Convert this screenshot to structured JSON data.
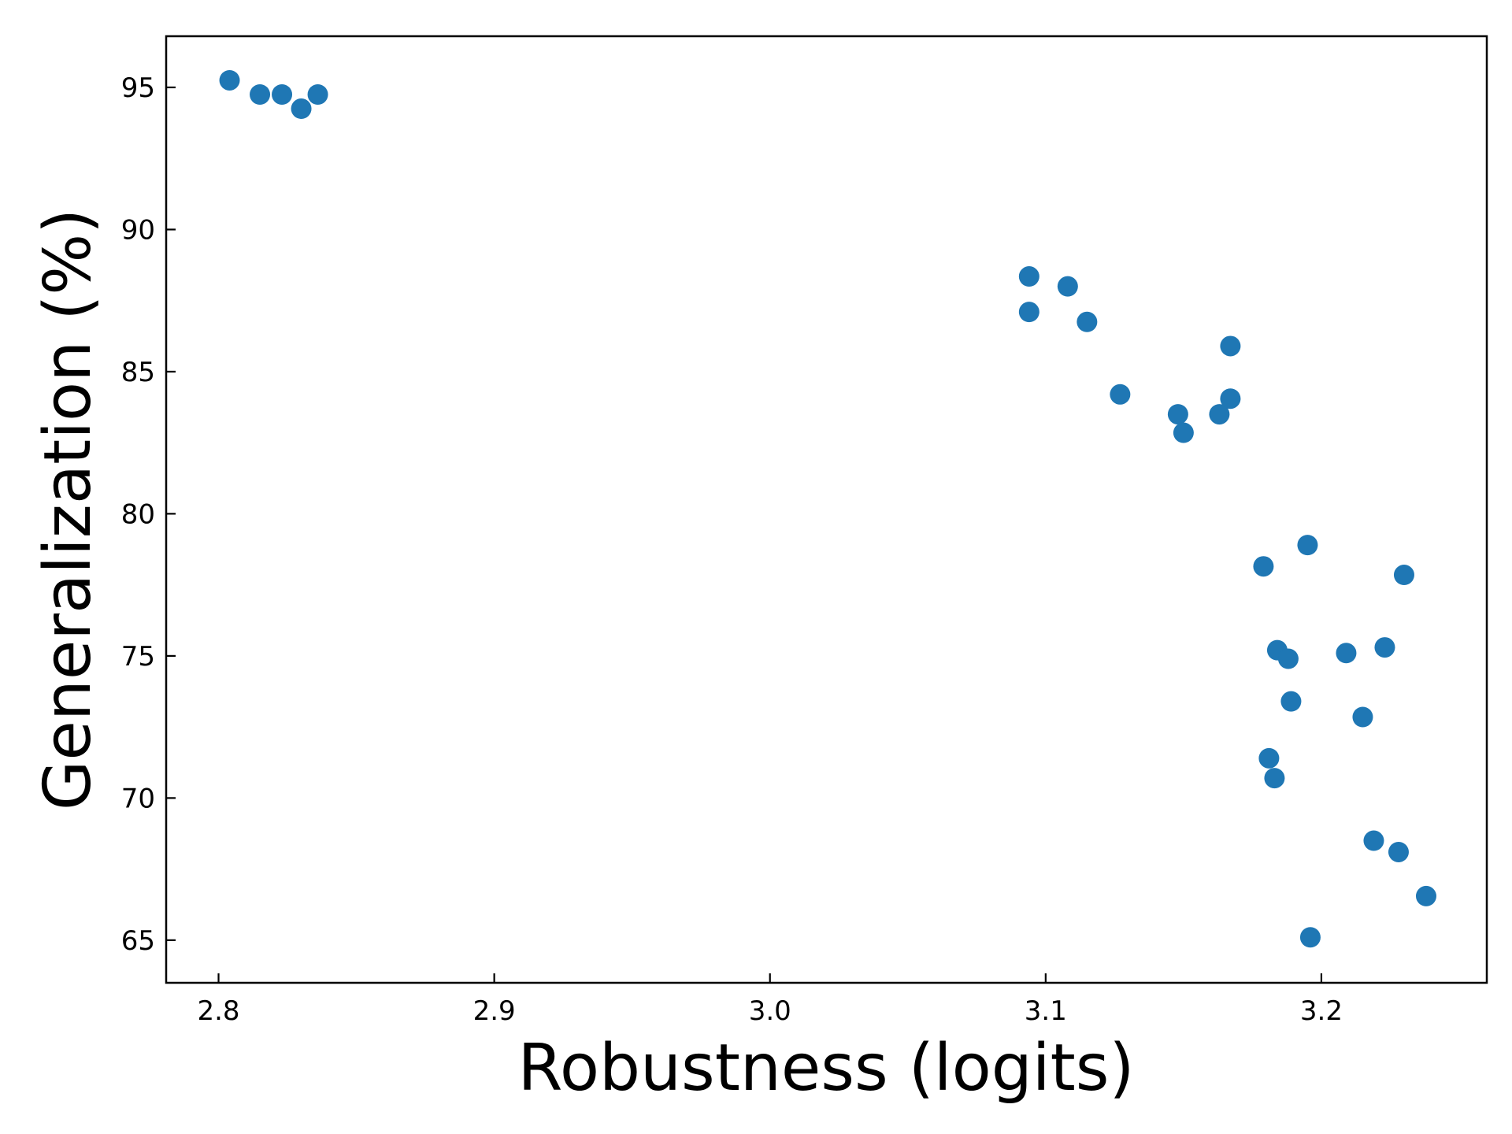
{
  "chart_data": {
    "type": "scatter",
    "xlabel": "Robustness (logits)",
    "ylabel": "Generalization (%)",
    "xlim": [
      2.781,
      3.26
    ],
    "ylim": [
      63.5,
      96.8
    ],
    "xticks": [
      2.8,
      2.9,
      3.0,
      3.1,
      3.2
    ],
    "xtick_labels": [
      "2.8",
      "2.9",
      "3.0",
      "3.1",
      "3.2"
    ],
    "yticks": [
      65,
      70,
      75,
      80,
      85,
      90,
      95
    ],
    "ytick_labels": [
      "65",
      "70",
      "75",
      "80",
      "85",
      "90",
      "95"
    ],
    "grid": false,
    "legend": "none",
    "marker_color": "#1f77b4",
    "points": [
      {
        "x": 2.804,
        "y": 95.25
      },
      {
        "x": 2.815,
        "y": 94.75
      },
      {
        "x": 2.823,
        "y": 94.75
      },
      {
        "x": 2.83,
        "y": 94.25
      },
      {
        "x": 2.836,
        "y": 94.75
      },
      {
        "x": 3.094,
        "y": 88.35
      },
      {
        "x": 3.094,
        "y": 87.1
      },
      {
        "x": 3.108,
        "y": 88.0
      },
      {
        "x": 3.115,
        "y": 86.75
      },
      {
        "x": 3.127,
        "y": 84.2
      },
      {
        "x": 3.148,
        "y": 83.5
      },
      {
        "x": 3.15,
        "y": 82.85
      },
      {
        "x": 3.163,
        "y": 83.5
      },
      {
        "x": 3.167,
        "y": 85.9
      },
      {
        "x": 3.167,
        "y": 84.05
      },
      {
        "x": 3.179,
        "y": 78.15
      },
      {
        "x": 3.181,
        "y": 71.4
      },
      {
        "x": 3.183,
        "y": 70.7
      },
      {
        "x": 3.184,
        "y": 75.2
      },
      {
        "x": 3.188,
        "y": 74.9
      },
      {
        "x": 3.189,
        "y": 73.4
      },
      {
        "x": 3.195,
        "y": 78.9
      },
      {
        "x": 3.196,
        "y": 65.1
      },
      {
        "x": 3.209,
        "y": 75.1
      },
      {
        "x": 3.215,
        "y": 72.85
      },
      {
        "x": 3.219,
        "y": 68.5
      },
      {
        "x": 3.223,
        "y": 75.3
      },
      {
        "x": 3.228,
        "y": 68.1
      },
      {
        "x": 3.23,
        "y": 77.85
      },
      {
        "x": 3.238,
        "y": 66.55
      }
    ]
  }
}
